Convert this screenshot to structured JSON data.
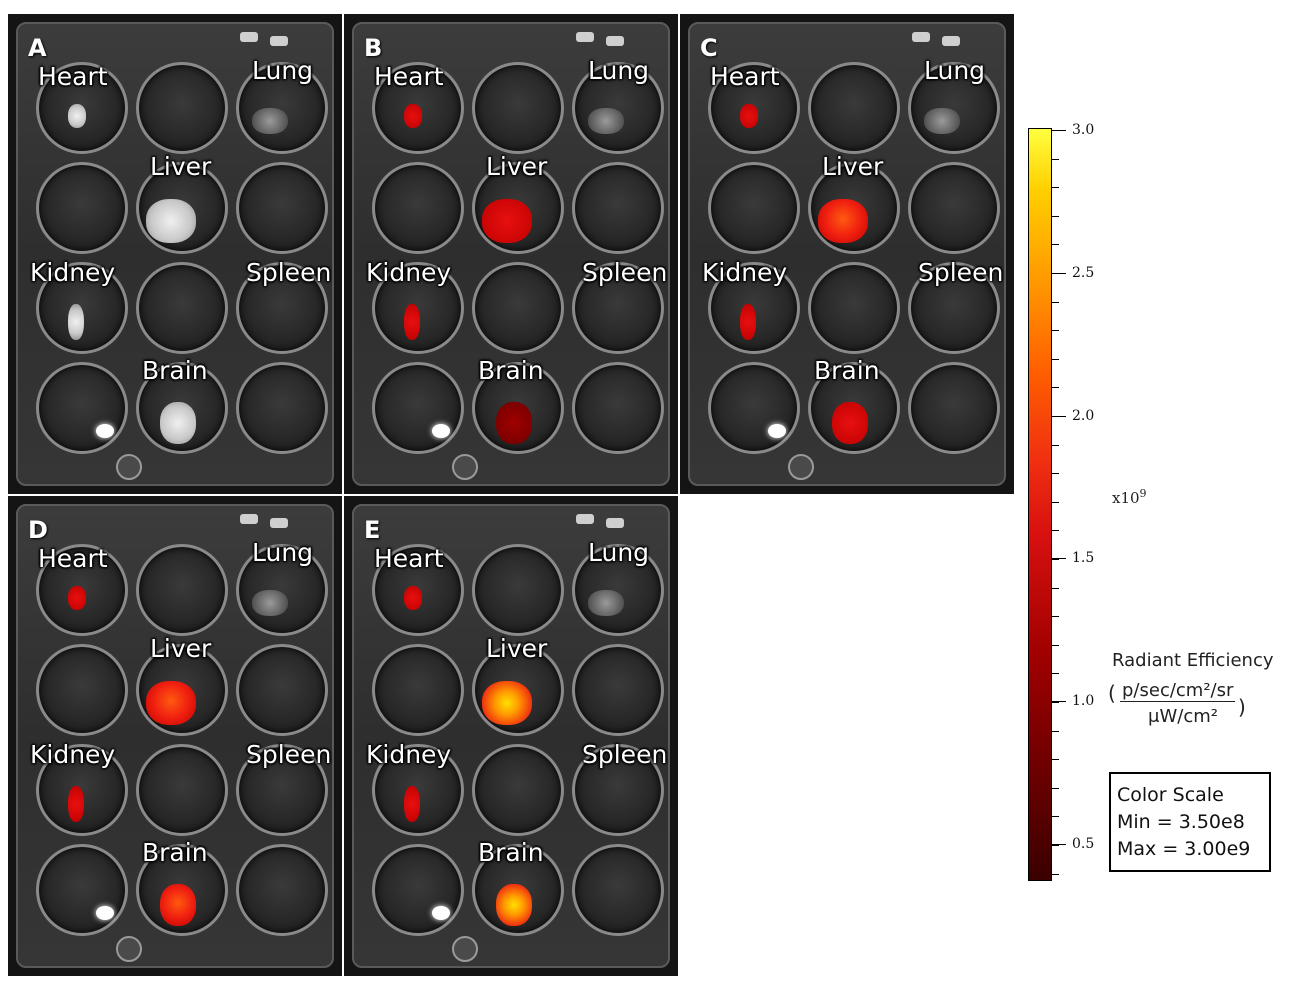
{
  "panels": [
    {
      "id": "A",
      "labels": {
        "heart": "Heart",
        "lung": "Lung",
        "liver": "Liver",
        "kidney": "Kidney",
        "spleen": "Spleen",
        "brain": "Brain"
      }
    },
    {
      "id": "B",
      "labels": {
        "heart": "Heart",
        "lung": "Lung",
        "liver": "Liver",
        "kidney": "Kidney",
        "spleen": "Spleen",
        "brain": "Brain"
      }
    },
    {
      "id": "C",
      "labels": {
        "heart": "Heart",
        "lung": "Lung",
        "liver": "Liver",
        "kidney": "Kidney",
        "spleen": "Spleen",
        "brain": "Brain"
      }
    },
    {
      "id": "D",
      "labels": {
        "heart": "Heart",
        "lung": "Lung",
        "liver": "Liver",
        "kidney": "Kidney",
        "spleen": "Spleen",
        "brain": "Brain"
      }
    },
    {
      "id": "E",
      "labels": {
        "heart": "Heart",
        "lung": "Lung",
        "liver": "Liver",
        "kidney": "Kidney",
        "spleen": "Spleen",
        "brain": "Brain"
      }
    }
  ],
  "color_scale": {
    "ticks": [
      "3.0",
      "2.5",
      "2.0",
      "1.5",
      "1.0",
      "0.5"
    ],
    "multiplier": "x10",
    "exponent": "9",
    "title": "Radiant Efficiency",
    "unit_numerator": "p/sec/cm²/sr",
    "unit_denominator": "μW/cm²",
    "box_title": "Color Scale",
    "min_text": "Min = 3.50e8",
    "max_text": "Max = 3.00e9",
    "colors": {
      "low": "#3a0000",
      "mid": "#d81010",
      "high": "#ffff40"
    }
  }
}
